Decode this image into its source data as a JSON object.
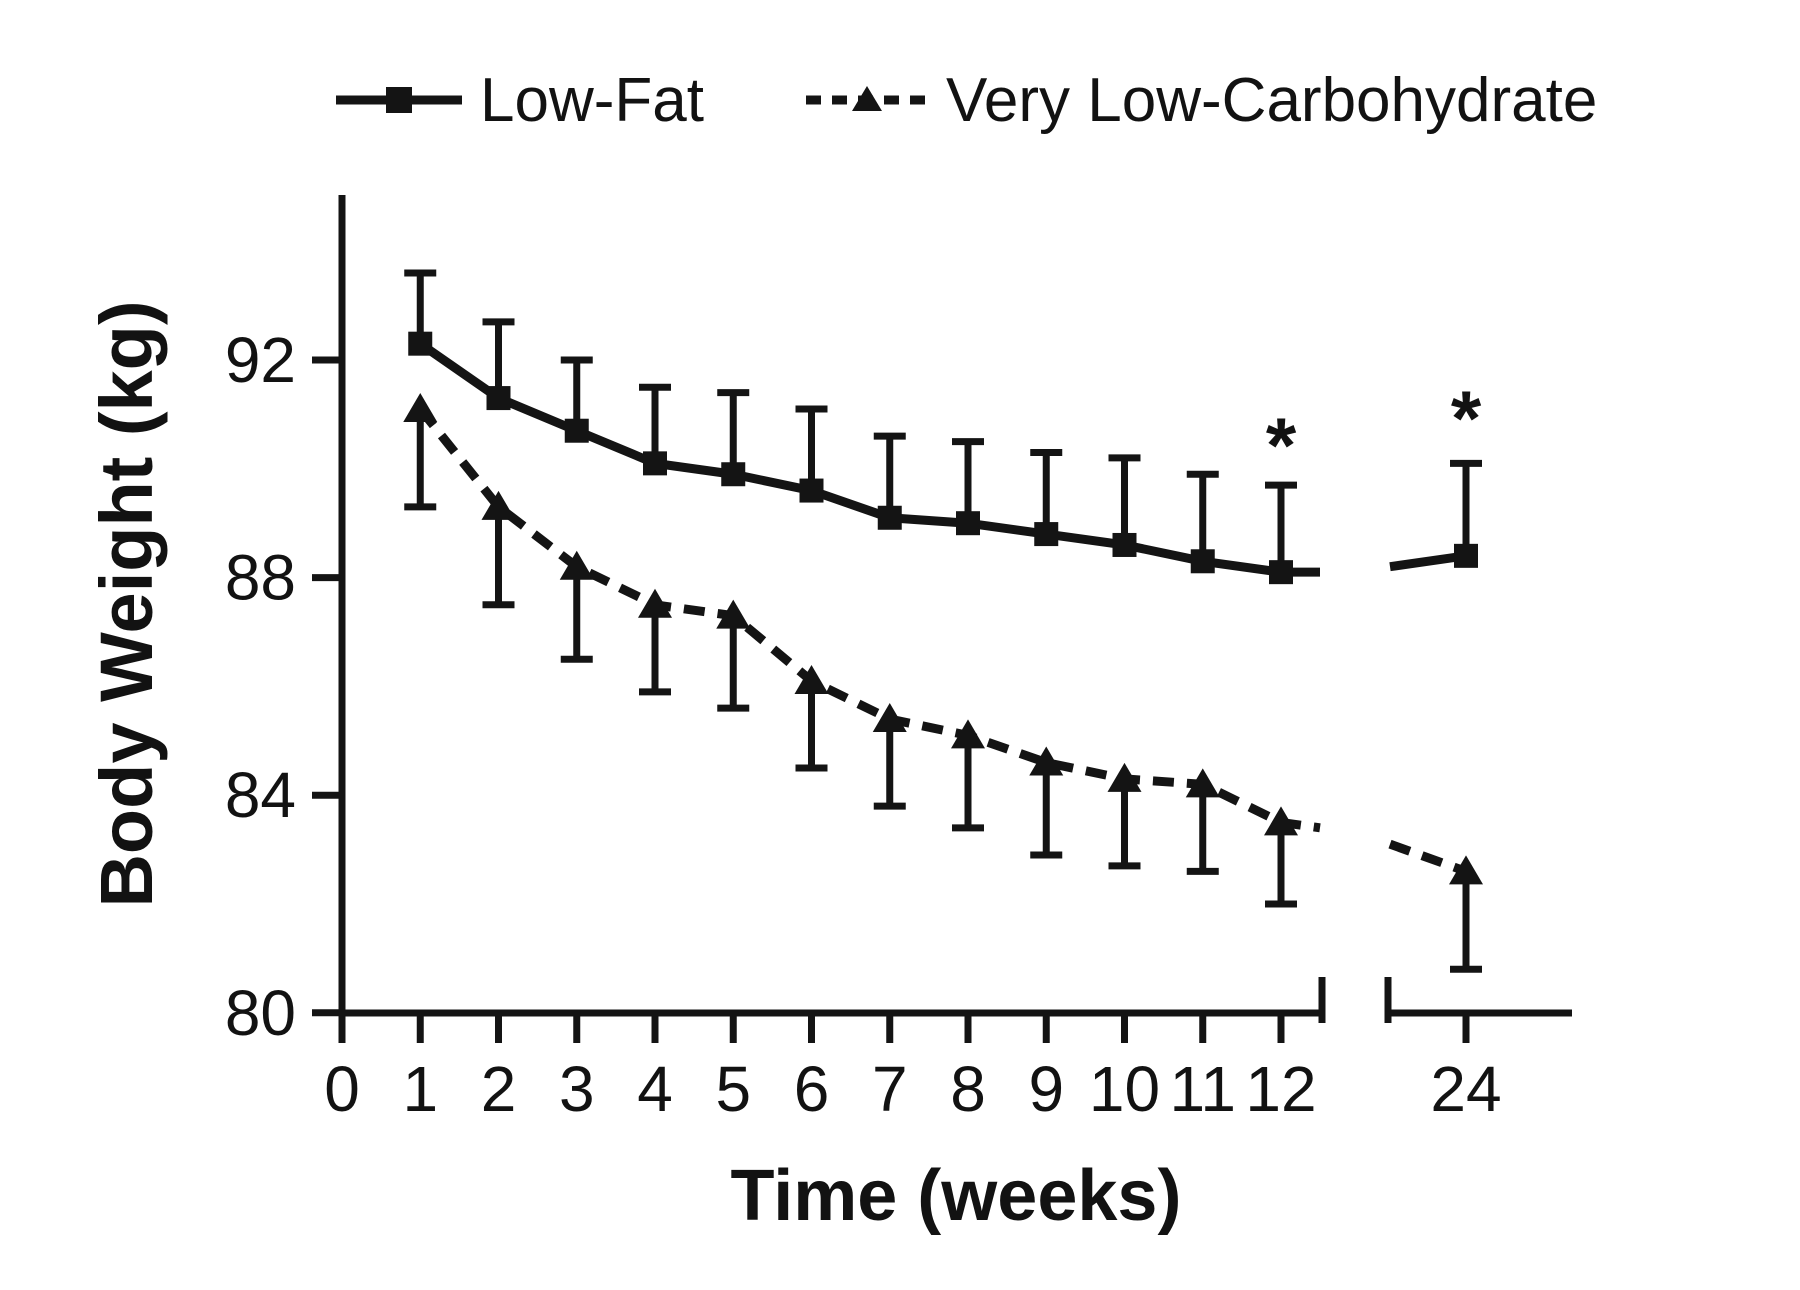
{
  "figure": {
    "ink": "#141414",
    "background": "#ffffff"
  },
  "legend": {
    "items": [
      {
        "label": "Low-Fat",
        "marker": "square",
        "line": "solid"
      },
      {
        "label": "Very Low-Carbohydrate",
        "marker": "triangle",
        "line": "dashed"
      }
    ]
  },
  "chart_data": {
    "type": "line",
    "title": "",
    "xlabel": "Time (weeks)",
    "ylabel": "Body Weight (kg)",
    "x_ticks": [
      0,
      1,
      2,
      3,
      4,
      5,
      6,
      7,
      8,
      9,
      10,
      11,
      12,
      24
    ],
    "y_ticks": [
      92,
      88,
      84,
      80
    ],
    "ylim": [
      80,
      94.7
    ],
    "grid": false,
    "legend_position": "top",
    "axis_break": {
      "between": [
        12,
        24
      ]
    },
    "series": [
      {
        "name": "Low-Fat",
        "marker": "square",
        "line": "solid",
        "error_direction": "up",
        "x": [
          1,
          2,
          3,
          4,
          5,
          6,
          7,
          8,
          9,
          10,
          11,
          12,
          24
        ],
        "y": [
          92.3,
          91.3,
          90.7,
          90.1,
          89.9,
          89.6,
          89.1,
          89.0,
          88.8,
          88.6,
          88.3,
          88.1,
          88.4
        ],
        "error_cap": [
          93.6,
          92.7,
          92.0,
          91.5,
          91.4,
          91.1,
          90.6,
          90.5,
          90.3,
          90.2,
          89.9,
          89.7,
          90.1
        ],
        "break_exit_value": 88.1,
        "break_entry_value": 88.2
      },
      {
        "name": "Very Low-Carbohydrate",
        "marker": "triangle",
        "line": "dashed",
        "error_direction": "down",
        "x": [
          1,
          2,
          3,
          4,
          5,
          6,
          7,
          8,
          9,
          10,
          11,
          12,
          24
        ],
        "y": [
          91.1,
          89.3,
          88.2,
          87.5,
          87.3,
          86.1,
          85.4,
          85.1,
          84.6,
          84.3,
          84.2,
          83.5,
          82.6
        ],
        "error_cap": [
          89.3,
          87.5,
          86.5,
          85.9,
          85.6,
          84.5,
          83.8,
          83.4,
          82.9,
          82.7,
          82.6,
          82.0,
          80.8
        ],
        "break_exit_value": 83.4,
        "break_entry_value": 83.1
      }
    ],
    "annotations": [
      {
        "text": "*",
        "week": 12,
        "y_value": 90.6
      },
      {
        "text": "*",
        "week": 24,
        "y_value": 91.1
      }
    ]
  }
}
